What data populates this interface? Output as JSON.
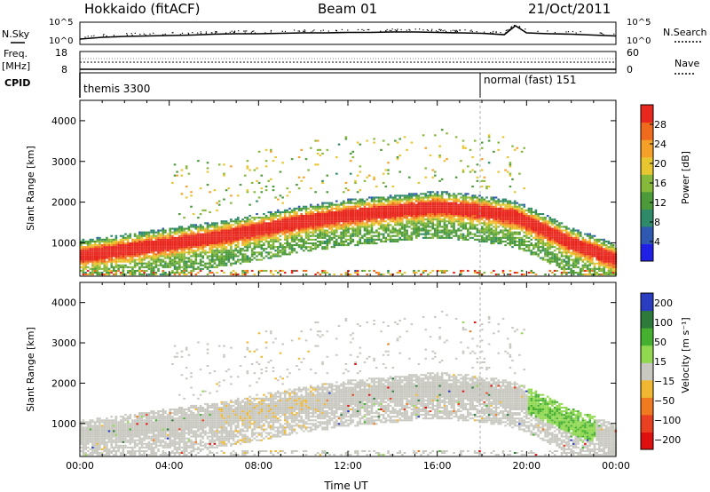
{
  "header": {
    "station": "Hokkaido (fitACF)",
    "beam": "Beam 01",
    "date": "21/Oct/2011"
  },
  "side_labels": {
    "nsky": "N.Sky",
    "freq_top": "Freq.",
    "freq_bottom": "[MHz]",
    "cpid": "CPID",
    "nsearch": "N.Search",
    "nave": "Nave"
  },
  "cpid_segments": [
    {
      "label": "themis 3300",
      "start_hour": 0
    },
    {
      "label": "normal (fast) 151",
      "start_hour": 18.0
    }
  ],
  "colors": {
    "power_scale": [
      "#1f1fe6",
      "#2f59b0",
      "#2f8a6a",
      "#4c9a3a",
      "#86b83a",
      "#e8c630",
      "#f5a028",
      "#f06a1e",
      "#e8281e"
    ],
    "velocity_scale": [
      "#2a3cbf",
      "#2d7a3a",
      "#45b030",
      "#90d850",
      "#c8c8c0",
      "#f0b830",
      "#f07a20",
      "#e84020",
      "#e01010"
    ]
  },
  "chart_data": [
    {
      "type": "line",
      "name": "nsky-nsearch-panel",
      "ylabel": "N.Sky",
      "ytick_labels": [
        "10^5",
        "10^0"
      ],
      "ytick_labels_right": [
        "10^5",
        "10^0"
      ],
      "ylim_log10": [
        0,
        5
      ],
      "x": [
        0,
        1,
        2,
        3,
        4,
        5,
        6,
        7,
        8,
        9,
        10,
        11,
        12,
        13,
        14,
        15,
        16,
        17,
        18,
        19,
        19.5,
        20,
        21,
        22,
        23,
        24
      ],
      "series": [
        {
          "name": "N.Sky",
          "values": [
            1.2,
            1.6,
            1.8,
            1.9,
            2.0,
            2.1,
            2.3,
            2.4,
            2.4,
            2.5,
            2.6,
            2.6,
            2.7,
            2.7,
            2.8,
            2.8,
            2.7,
            2.6,
            2.5,
            2.2,
            4.2,
            2.6,
            2.4,
            2.3,
            2.1,
            1.9
          ]
        }
      ]
    },
    {
      "type": "line",
      "name": "freq-nave-panel",
      "ylabel": "Freq. [MHz]",
      "ytick_labels": [
        "18",
        "8"
      ],
      "ytick_labels_right": [
        "60",
        "0"
      ],
      "ylim": [
        8,
        18
      ],
      "ylim_right": [
        0,
        60
      ],
      "x": [
        0,
        24
      ],
      "series": [
        {
          "name": "Freq",
          "values": [
            8.4,
            8.4
          ]
        },
        {
          "name": "Nave",
          "values": [
            28,
            28
          ]
        }
      ]
    },
    {
      "type": "heatmap",
      "name": "power-panel",
      "ylabel": "Slant Range [km]",
      "yticks": [
        1000,
        2000,
        3000,
        4000
      ],
      "ylim": [
        180,
        4500
      ],
      "xlim": [
        0,
        24
      ],
      "colorbar_label": "Power [dB]",
      "colorbar_ticks": [
        4,
        8,
        12,
        16,
        20,
        24,
        28
      ],
      "colorbar_range": [
        0,
        32
      ],
      "echo_band_center_km": [
        [
          0,
          800
        ],
        [
          2,
          950
        ],
        [
          4,
          1100
        ],
        [
          6,
          1250
        ],
        [
          8,
          1450
        ],
        [
          10,
          1650
        ],
        [
          12,
          1800
        ],
        [
          14,
          1900
        ],
        [
          16,
          2000
        ],
        [
          18,
          1900
        ],
        [
          19.5,
          1750
        ],
        [
          20.5,
          1500
        ],
        [
          22,
          1100
        ],
        [
          24,
          700
        ]
      ]
    },
    {
      "type": "heatmap",
      "name": "velocity-panel",
      "ylabel": "Slant Range [km]",
      "xlabel": "Time UT",
      "yticks": [
        1000,
        2000,
        3000,
        4000
      ],
      "ylim": [
        180,
        4500
      ],
      "xlim": [
        0,
        24
      ],
      "xtick_labels": [
        "00:00",
        "04:00",
        "08:00",
        "12:00",
        "16:00",
        "20:00",
        "00:00"
      ],
      "xticks": [
        0,
        4,
        8,
        12,
        16,
        20,
        24
      ],
      "colorbar_label": "Velocity [m s⁻¹]",
      "colorbar_ticks": [
        "200",
        "100",
        "50",
        "15",
        "−15",
        "−50",
        "−100",
        "−200"
      ]
    }
  ]
}
